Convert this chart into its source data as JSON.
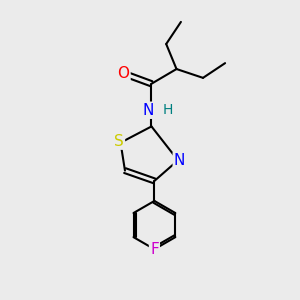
{
  "background_color": "#ebebeb",
  "bond_color": "#000000",
  "atom_colors": {
    "O": "#ff0000",
    "N": "#0000ff",
    "H": "#008080",
    "S": "#cccc00",
    "F": "#cc00cc",
    "C": "#000000"
  },
  "font_size_atoms": 11,
  "figsize": [
    3.0,
    3.0
  ],
  "dpi": 100
}
